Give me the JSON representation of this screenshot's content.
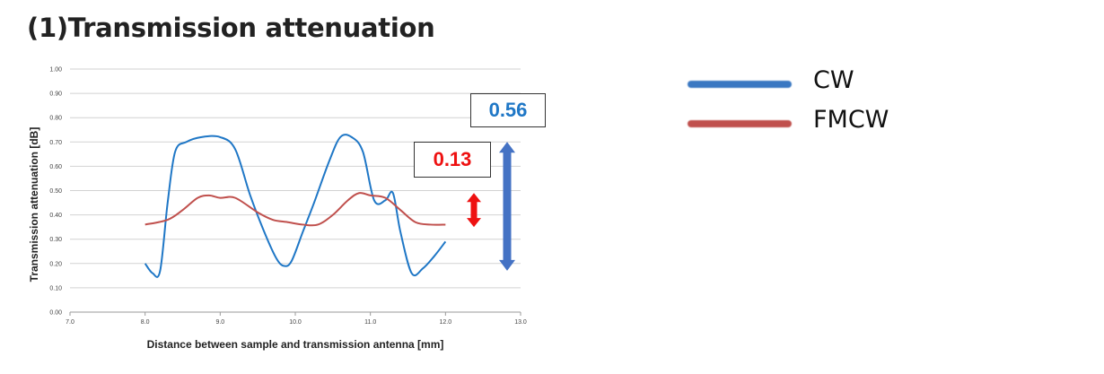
{
  "heading": "(1)Transmission attenuation",
  "chart_data": {
    "type": "line",
    "xlabel": "Distance between sample and transmission antenna [mm]",
    "ylabel": "Transmission attenuation [dB]",
    "xlim": [
      7.0,
      13.0
    ],
    "ylim": [
      0.0,
      1.0
    ],
    "xticks": [
      "7.0",
      "8.0",
      "9.0",
      "10.0",
      "11.0",
      "12.0",
      "13.0"
    ],
    "yticks": [
      "0.00",
      "0.10",
      "0.20",
      "0.30",
      "0.40",
      "0.50",
      "0.60",
      "0.70",
      "0.80",
      "0.90",
      "1.00"
    ],
    "grid": "horizontal",
    "legend_position": "right",
    "series": [
      {
        "name": "CW",
        "color": "#1f77c6",
        "x": [
          8.0,
          8.1,
          8.2,
          8.3,
          8.4,
          8.55,
          8.75,
          9.0,
          9.2,
          9.4,
          9.6,
          9.75,
          9.85,
          9.95,
          10.1,
          10.25,
          10.45,
          10.6,
          10.75,
          10.9,
          11.05,
          11.2,
          11.3,
          11.4,
          11.55,
          11.7,
          11.85,
          12.0
        ],
        "values": [
          0.2,
          0.16,
          0.17,
          0.45,
          0.66,
          0.7,
          0.72,
          0.72,
          0.67,
          0.48,
          0.32,
          0.22,
          0.19,
          0.21,
          0.33,
          0.45,
          0.62,
          0.72,
          0.72,
          0.66,
          0.46,
          0.46,
          0.49,
          0.33,
          0.16,
          0.18,
          0.23,
          0.29
        ]
      },
      {
        "name": "FMCW",
        "color": "#c0504d",
        "x": [
          8.0,
          8.3,
          8.5,
          8.7,
          8.85,
          9.0,
          9.2,
          9.5,
          9.7,
          9.9,
          10.1,
          10.3,
          10.5,
          10.7,
          10.85,
          11.0,
          11.2,
          11.4,
          11.6,
          11.8,
          12.0
        ],
        "values": [
          0.36,
          0.38,
          0.42,
          0.47,
          0.48,
          0.47,
          0.47,
          0.41,
          0.38,
          0.37,
          0.36,
          0.36,
          0.4,
          0.46,
          0.49,
          0.48,
          0.47,
          0.42,
          0.37,
          0.36,
          0.36
        ]
      }
    ],
    "annotations": [
      {
        "text": "0.56",
        "color": "#1f77c6",
        "range": [
          0.17,
          0.7
        ]
      },
      {
        "text": "0.13",
        "color": "#ee1111",
        "range": [
          0.35,
          0.49
        ]
      }
    ]
  }
}
